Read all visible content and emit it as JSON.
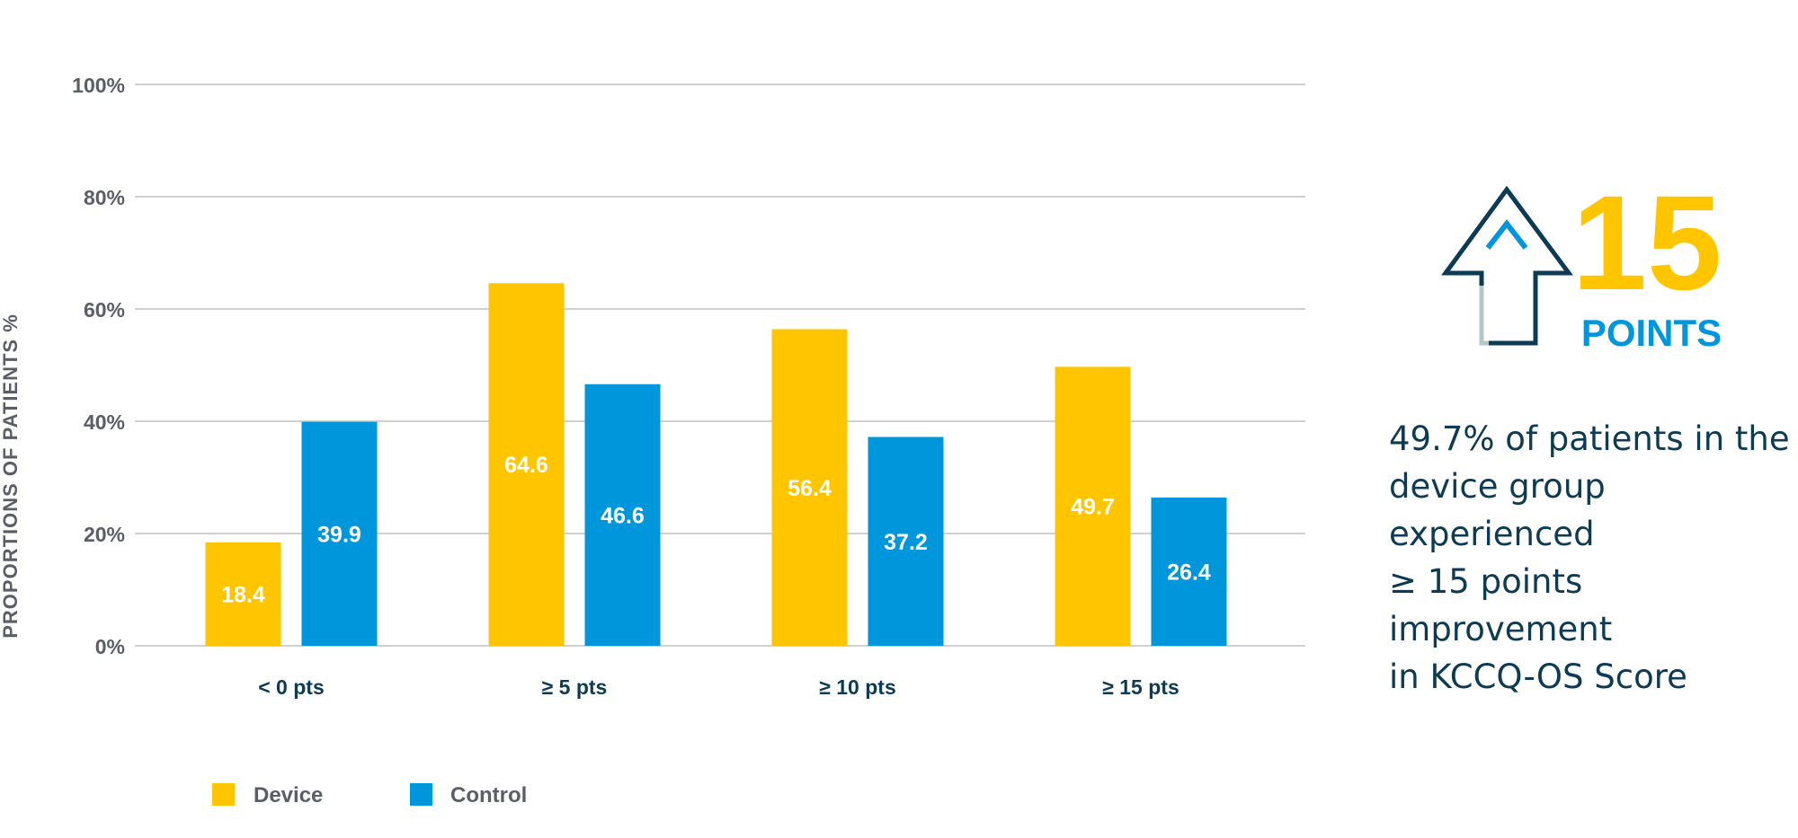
{
  "chart_data": {
    "type": "bar",
    "title": "",
    "xlabel": "",
    "ylabel": "PROPORTIONS OF PATIENTS %",
    "ylim": [
      0,
      100
    ],
    "yticks": [
      "0%",
      "20%",
      "40%",
      "60%",
      "80%",
      "100%"
    ],
    "categories": [
      "< 0 pts",
      "≥ 5 pts",
      "≥ 10 pts",
      "≥ 15 pts"
    ],
    "series": [
      {
        "name": "Device",
        "color": "#ffc600",
        "values": [
          18.4,
          64.6,
          56.4,
          49.7
        ]
      },
      {
        "name": "Control",
        "color": "#0096dc",
        "values": [
          39.9,
          46.6,
          37.2,
          26.4
        ]
      }
    ],
    "grid": true,
    "legend_position": "bottom-left"
  },
  "highlight": {
    "number": "15",
    "word": "POINTS",
    "icon": "up-arrow-icon",
    "description": [
      "49.7% of patients in the",
      "device group experienced",
      "≥ 15 points improvement",
      "in KCCQ-OS Score"
    ]
  },
  "colors": {
    "device": "#ffc600",
    "control": "#0096dc",
    "navy": "#0d3b54",
    "grid": "#d0d0d0",
    "text_gray": "#5b5e66"
  }
}
